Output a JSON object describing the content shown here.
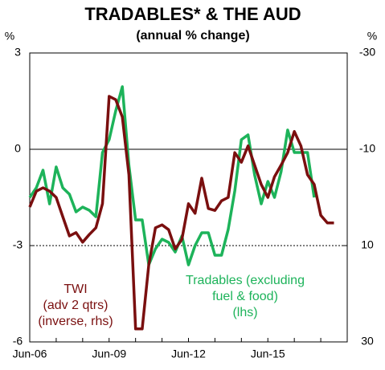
{
  "chart_data": {
    "type": "line",
    "title": "TRADABLES* & THE AUD",
    "subtitle": "(annual % change)",
    "y_unit": "%",
    "y2_unit": "%",
    "categories": [
      "Jun-06",
      null,
      null,
      null,
      null,
      null,
      null,
      null,
      null,
      null,
      null,
      null,
      "Jun-09",
      null,
      null,
      null,
      null,
      null,
      null,
      null,
      null,
      null,
      null,
      null,
      "Jun-12",
      null,
      null,
      null,
      null,
      null,
      null,
      null,
      null,
      null,
      null,
      null,
      "Jun-15",
      null,
      null,
      null,
      null,
      null,
      null,
      null,
      null,
      null,
      null,
      null,
      null
    ],
    "ylim": [
      -6,
      3
    ],
    "yticks": [
      -6,
      -3,
      0,
      3
    ],
    "y2lim": [
      30,
      -30
    ],
    "y2ticks": [
      30,
      10,
      -10,
      -30
    ],
    "series": [
      {
        "name": [
          "Tradables (excluding",
          "fuel & food)",
          "(lhs)"
        ],
        "color": "#1db35a",
        "values": [
          -1.5,
          -1.2,
          -0.65,
          -1.7,
          -0.55,
          -1.2,
          -1.4,
          -1.95,
          -1.8,
          -1.9,
          -2.1,
          -0.1,
          0.3,
          1.2,
          1.95,
          -0.5,
          -2.2,
          -2.2,
          -3.6,
          -3.1,
          -2.8,
          -2.9,
          -3.2,
          -2.7,
          -3.6,
          -3.0,
          -2.6,
          -2.6,
          -3.3,
          -3.3,
          -2.5,
          -1.3,
          0.3,
          0.45,
          -0.8,
          -1.7,
          -1.0,
          -1.5,
          -0.7,
          0.6,
          -0.1,
          -0.1,
          -0.1,
          -1.5,
          null,
          null,
          null,
          null,
          null
        ]
      },
      {
        "name": [
          "TWI",
          "(adv 2 qtrs)",
          "(inverse, rhs)"
        ],
        "color": "#7a0f0f",
        "axis": "y2",
        "values": [
          2,
          -1.3,
          -2,
          -1.3,
          0,
          4,
          8,
          7.3,
          9.3,
          7.7,
          6.3,
          1.3,
          -21,
          -20.3,
          -16.7,
          -4.7,
          27.3,
          27.3,
          14,
          6.3,
          5.7,
          6.7,
          10.7,
          8.7,
          1.3,
          3.3,
          -4,
          2.3,
          2.7,
          0.7,
          0,
          -9.3,
          -7.3,
          -10.7,
          -6.7,
          -2.7,
          0,
          -4.3,
          -6.7,
          -9.3,
          -13.7,
          -10.7,
          -4.7,
          -2.7,
          3.7,
          5.3,
          5.3,
          null,
          null
        ]
      }
    ]
  }
}
